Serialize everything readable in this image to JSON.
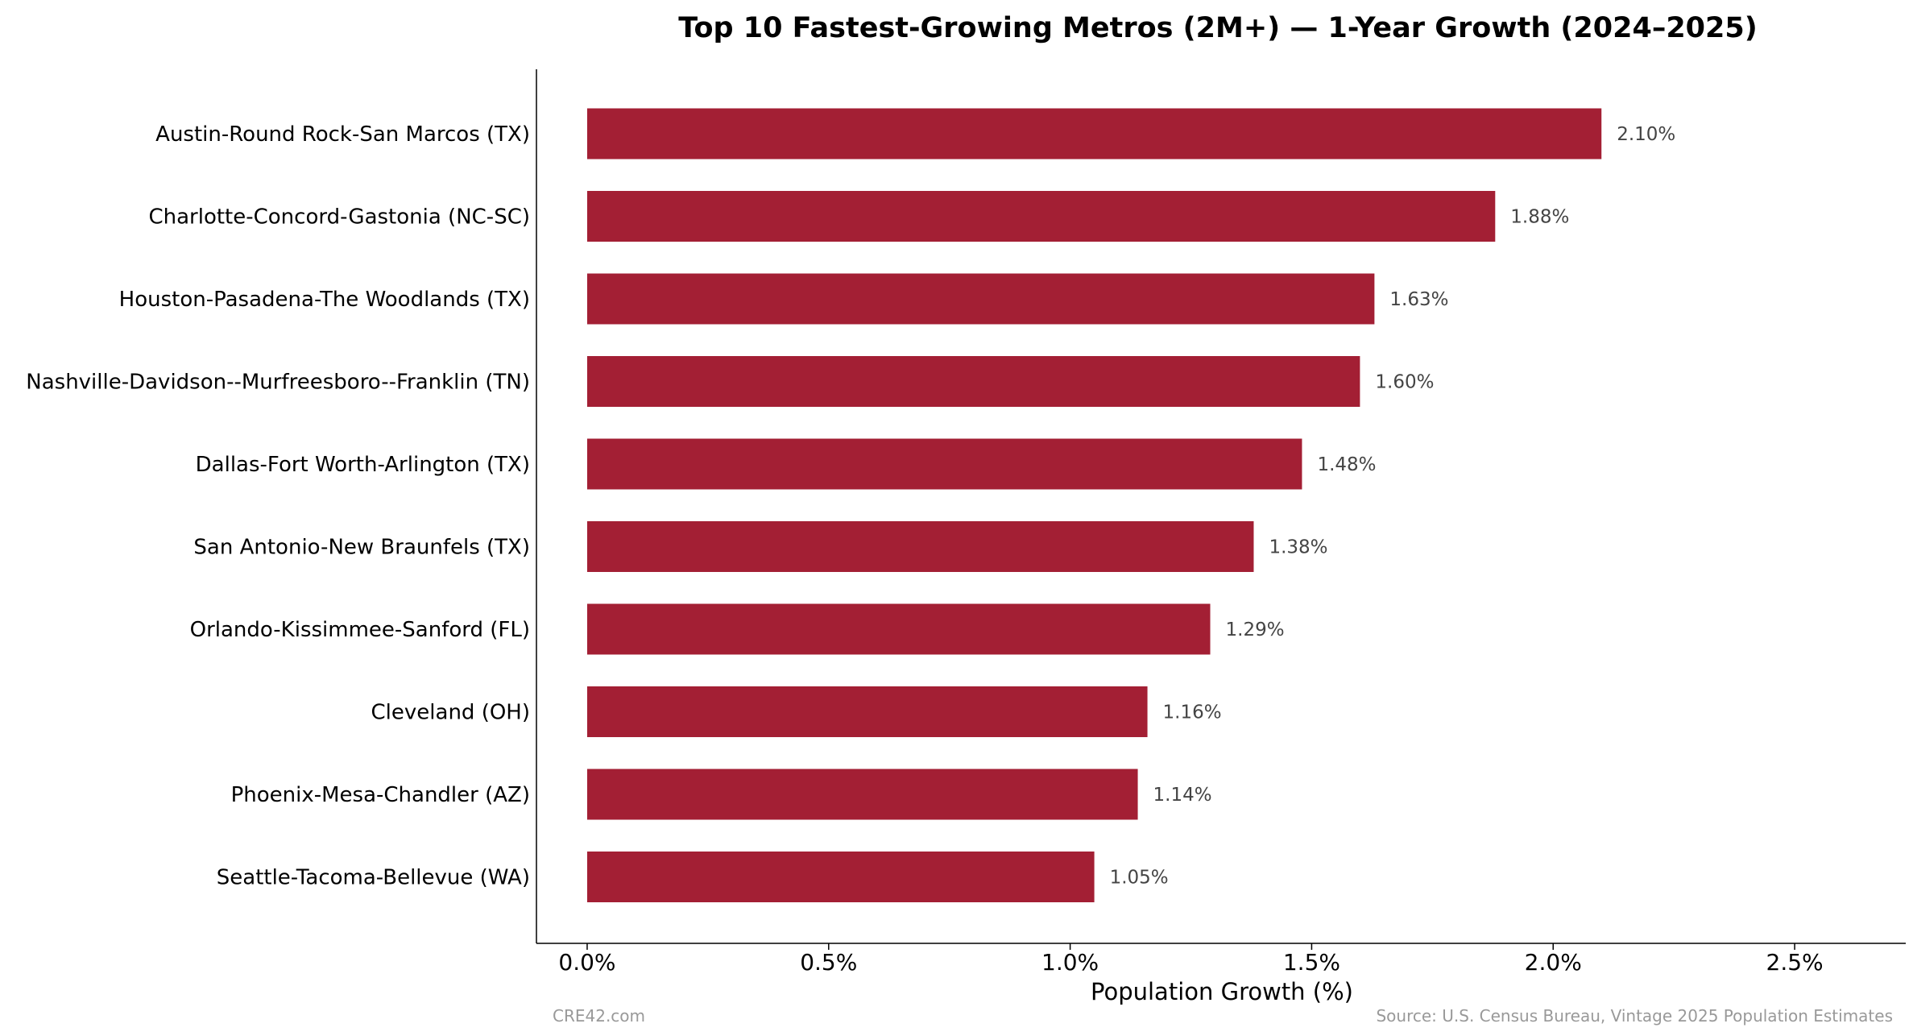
{
  "chart_data": {
    "type": "bar",
    "orientation": "horizontal",
    "title": "Top 10 Fastest-Growing Metros (2M+) — 1-Year Growth (2024–2025)",
    "xlabel": "Population Growth (%)",
    "ylabel": "",
    "categories": [
      "Austin-Round Rock-San Marcos (TX)",
      "Charlotte-Concord-Gastonia (NC-SC)",
      "Houston-Pasadena-The Woodlands (TX)",
      "Nashville-Davidson--Murfreesboro--Franklin (TN)",
      "Dallas-Fort Worth-Arlington (TX)",
      "San Antonio-New Braunfels (TX)",
      "Orlando-Kissimmee-Sanford (FL)",
      "Cleveland (OH)",
      "Phoenix-Mesa-Chandler (AZ)",
      "Seattle-Tacoma-Bellevue (WA)"
    ],
    "values": [
      2.1,
      1.88,
      1.63,
      1.6,
      1.48,
      1.38,
      1.29,
      1.16,
      1.14,
      1.05
    ],
    "value_labels": [
      "2.10%",
      "1.88%",
      "1.63%",
      "1.60%",
      "1.48%",
      "1.38%",
      "1.29%",
      "1.16%",
      "1.14%",
      "1.05%"
    ],
    "xlim": [
      -0.105,
      2.73
    ],
    "xticks": [
      0.0,
      0.5,
      1.0,
      1.5,
      2.0,
      2.5
    ],
    "xtick_labels": [
      "0.0%",
      "0.5%",
      "1.0%",
      "1.5%",
      "2.0%",
      "2.5%"
    ],
    "bar_color": "#A31F34",
    "grid": false,
    "legend": "none"
  },
  "footer": {
    "left": "CRE42.com",
    "right": "Source: U.S. Census Bureau, Vintage 2025 Population Estimates"
  }
}
